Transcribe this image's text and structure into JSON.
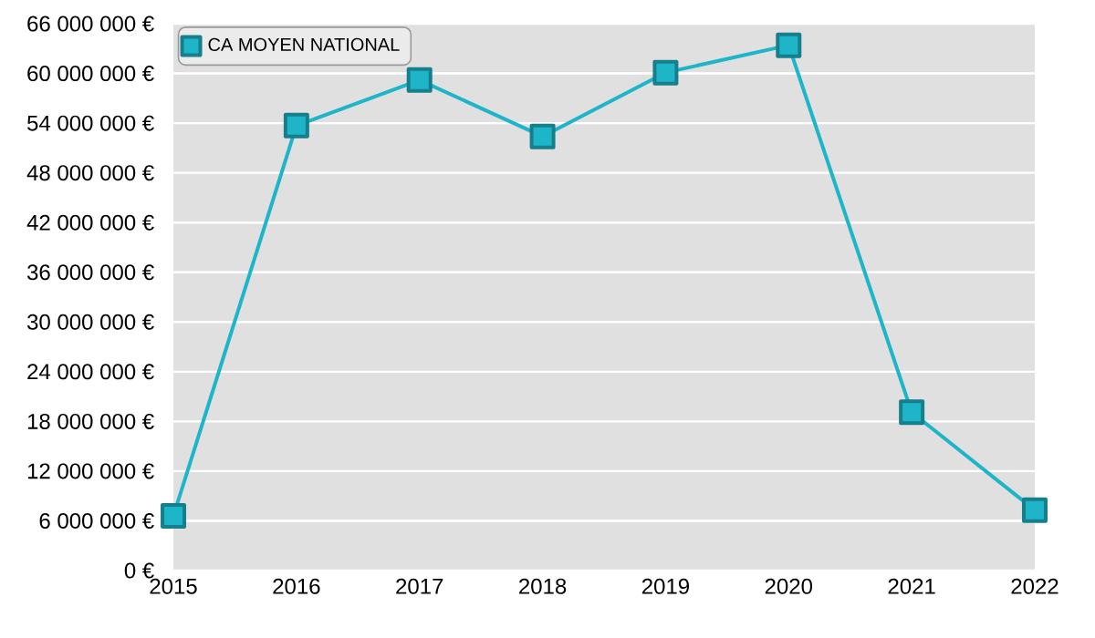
{
  "chart_data": {
    "type": "line",
    "x": [
      2015,
      2016,
      2017,
      2018,
      2019,
      2020,
      2021,
      2022
    ],
    "series": [
      {
        "name": "CA MOYEN NATIONAL",
        "color": "#1fb5c8",
        "values": [
          6600000,
          53700000,
          59200000,
          52400000,
          60100000,
          63400000,
          19100000,
          7300000
        ]
      }
    ],
    "xlim": [
      2015,
      2022
    ],
    "xticks": [
      2015,
      2016,
      2017,
      2018,
      2019,
      2020,
      2021,
      2022
    ],
    "ylim": [
      0,
      66000000
    ],
    "yticks": [
      {
        "value": 0,
        "label": "0 €"
      },
      {
        "value": 6000000,
        "label": "6 000 000 €"
      },
      {
        "value": 12000000,
        "label": "12 000 000 €"
      },
      {
        "value": 18000000,
        "label": "18 000 000 €"
      },
      {
        "value": 24000000,
        "label": "24 000 000 €"
      },
      {
        "value": 30000000,
        "label": "30 000 000 €"
      },
      {
        "value": 36000000,
        "label": "36 000 000 €"
      },
      {
        "value": 42000000,
        "label": "42 000 000 €"
      },
      {
        "value": 48000000,
        "label": "48 000 000 €"
      },
      {
        "value": 54000000,
        "label": "54 000 000 €"
      },
      {
        "value": 60000000,
        "label": "60 000 000 €"
      },
      {
        "value": 66000000,
        "label": "66 000 000 €"
      }
    ],
    "grid": "y",
    "legend": "top left",
    "marker": "square",
    "line_style": "solid"
  }
}
